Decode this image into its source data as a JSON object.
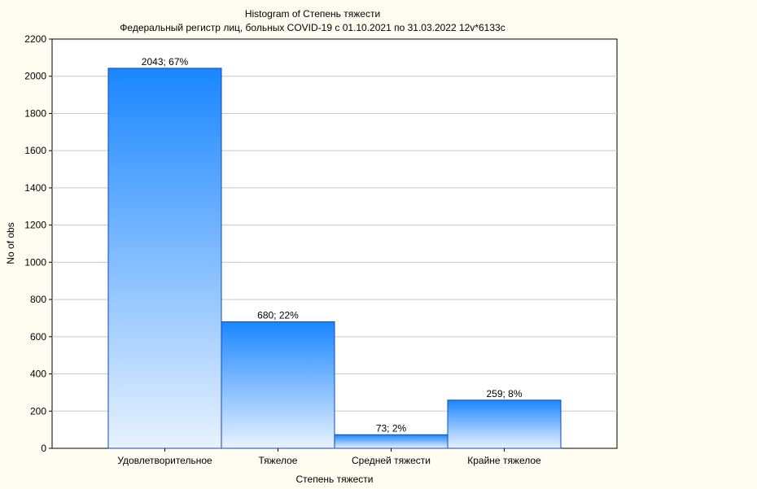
{
  "chart_data": {
    "type": "bar",
    "title": "Histogram of Степень тяжести",
    "subtitle": "Федеральный регистр лиц, больных COVID-19 с 01.10.2021 по 31.03.2022 12v*6133c",
    "xlabel": "Степень тяжести",
    "ylabel": "No of obs",
    "categories": [
      "Удовлетворительное",
      "Тяжелое",
      "Средней тяжести",
      "Крайне тяжелое"
    ],
    "values": [
      2043,
      680,
      73,
      259
    ],
    "data_labels": [
      "2043; 67%",
      "680; 22%",
      "73; 2%",
      "259; 8%"
    ],
    "ylim": [
      0,
      2200
    ],
    "yticks": [
      0,
      200,
      400,
      600,
      800,
      1000,
      1200,
      1400,
      1600,
      1800,
      2000,
      2200
    ],
    "grid": true,
    "legend": "none",
    "colors": {
      "bar_top": "#1a86ff",
      "bar_bottom": "#e8f2ff",
      "bar_stroke": "#1248b8",
      "grid": "#c8c8c8",
      "plot_bg": "#ffffff",
      "page_bg": "#fffcf2"
    }
  }
}
